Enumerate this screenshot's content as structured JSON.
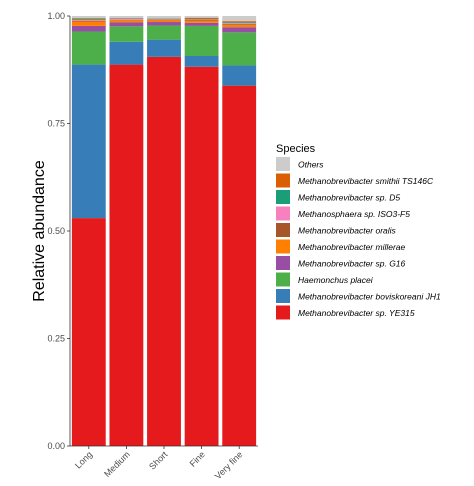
{
  "chart_data": {
    "type": "bar",
    "stacked": true,
    "categories": [
      "Long",
      "Medium",
      "Short",
      "Fine",
      "Very fine"
    ],
    "ylabel": "Relative abundance",
    "xlabel": "",
    "ylim": [
      0,
      1
    ],
    "yticks": [
      "0.00",
      "0.25",
      "0.50",
      "0.75",
      "1.00"
    ],
    "ytick_values": [
      0,
      0.25,
      0.5,
      0.75,
      1.0
    ],
    "legend_title": "Species",
    "legend_position": "right",
    "grid": false,
    "series": [
      {
        "name": "Methanobrevibacter sp. YE315",
        "color": "#e41a1c",
        "values": [
          0.53,
          0.887,
          0.905,
          0.882,
          0.838
        ]
      },
      {
        "name": "Methanobrevibacter boviskoreani JH1",
        "color": "#377eb8",
        "values": [
          0.357,
          0.053,
          0.04,
          0.025,
          0.047
        ]
      },
      {
        "name": "Haemonchus placei",
        "color": "#4daf4a",
        "values": [
          0.077,
          0.036,
          0.033,
          0.07,
          0.077
        ]
      },
      {
        "name": "Methanobrevibacter sp. G16",
        "color": "#984ea3",
        "values": [
          0.013,
          0.009,
          0.008,
          0.007,
          0.012
        ]
      },
      {
        "name": "Methanobrevibacter millerae",
        "color": "#ff7f00",
        "values": [
          0.01,
          0.005,
          0.004,
          0.005,
          0.006
        ]
      },
      {
        "name": "Methanobrevibacter oralis",
        "color": "#a65628",
        "values": [
          0.002,
          0.001,
          0.001,
          0.002,
          0.002
        ]
      },
      {
        "name": "Methanosphaera sp. ISO3-F5",
        "color": "#f781bf",
        "values": [
          0.002,
          0.002,
          0.001,
          0.001,
          0.002
        ]
      },
      {
        "name": "Methanobrevibacter sp. D5",
        "color": "#1b9e77",
        "values": [
          0.002,
          0.001,
          0.001,
          0.001,
          0.002
        ]
      },
      {
        "name": "Methanobrevibacter smithii TS146C",
        "color": "#d95f02",
        "values": [
          0.002,
          0.001,
          0.001,
          0.003,
          0.002
        ]
      },
      {
        "name": "Others",
        "color": "#cccccc",
        "values": [
          0.005,
          0.005,
          0.006,
          0.004,
          0.012
        ]
      }
    ]
  }
}
